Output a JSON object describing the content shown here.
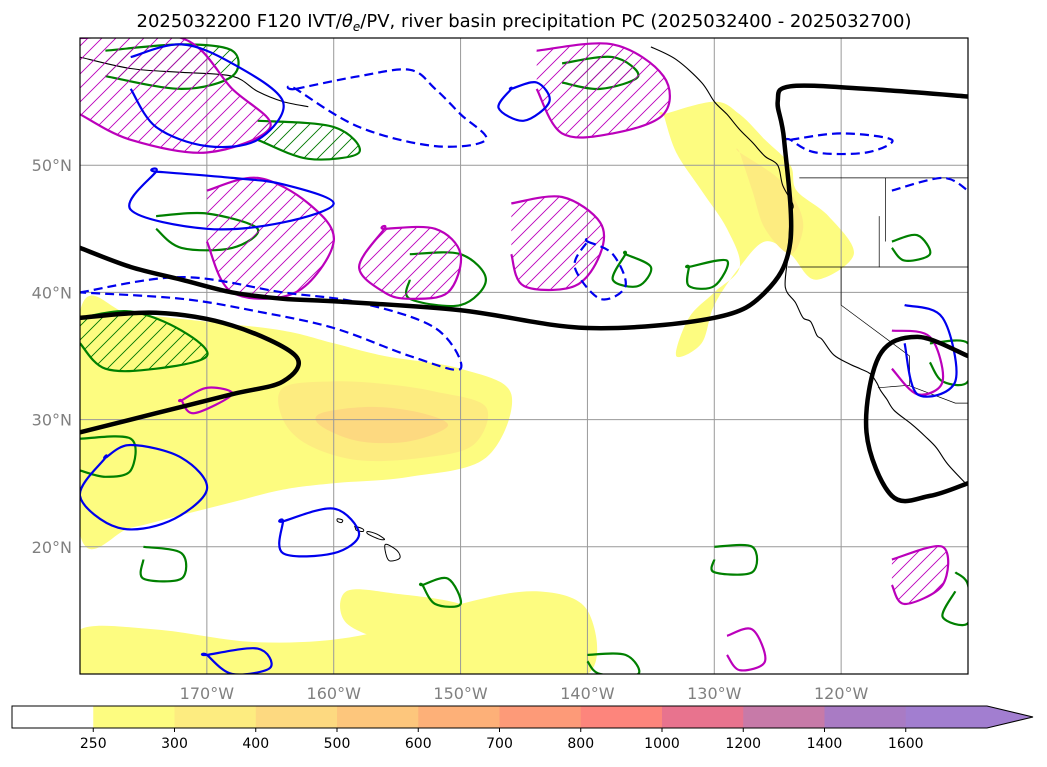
{
  "chart_data": {
    "type": "map",
    "title": "2025032200 F120 IVT/θe/PV, river basin precipitation PC (2025032400 - 2025032700)",
    "title_parts": {
      "lead": "2025032200 F120 IVT/",
      "theta": "θ",
      "theta_sub": "e",
      "trail": "/PV, river basin precipitation PC (2025032400 - 2025032700)"
    },
    "projection": "PlateCarree",
    "extent": {
      "lon_min": -180,
      "lon_max": -110,
      "lat_min": 10,
      "lat_max": 60
    },
    "lat_ticks": [
      {
        "value": 50,
        "label": "50°N"
      },
      {
        "value": 40,
        "label": "40°N"
      },
      {
        "value": 30,
        "label": "30°N"
      },
      {
        "value": 20,
        "label": "20°N"
      }
    ],
    "lon_ticks": [
      {
        "value": -170,
        "label": "170°W"
      },
      {
        "value": -160,
        "label": "160°W"
      },
      {
        "value": -150,
        "label": "150°W"
      },
      {
        "value": -140,
        "label": "140°W"
      },
      {
        "value": -130,
        "label": "130°W"
      },
      {
        "value": -120,
        "label": "120°W"
      }
    ],
    "grid": true,
    "colorbar": {
      "orientation": "horizontal",
      "extend": "max",
      "levels": [
        250,
        300,
        400,
        500,
        600,
        700,
        800,
        1000,
        1200,
        1400,
        1600
      ],
      "labels": [
        "250",
        "300",
        "400",
        "500",
        "600",
        "700",
        "800",
        "1000",
        "1200",
        "1400",
        "1600"
      ],
      "colors": [
        "#ffffff",
        "#fdfc80",
        "#fdec80",
        "#fdd980",
        "#fdc67c",
        "#fdb078",
        "#fd9a78",
        "#fd857c",
        "#e8738e",
        "#c77aa8",
        "#a97bc4",
        "#a27ed0"
      ]
    },
    "ivt_regions": [
      {
        "level": 250,
        "lon": [
          -180,
          -176,
          -170,
          -164,
          -160,
          -156,
          -150,
          -146,
          -148,
          -154,
          -160,
          -164,
          -168,
          -172,
          -176,
          -180
        ],
        "lat": [
          38.5,
          38.3,
          37.7,
          37,
          36,
          35,
          34,
          32,
          27,
          25.5,
          25,
          24.5,
          23.5,
          22.5,
          21.5,
          21
        ]
      },
      {
        "level": 300,
        "lon": [
          -164,
          -160,
          -156,
          -152,
          -148,
          -149,
          -153,
          -158,
          -162,
          -164
        ],
        "lat": [
          32.5,
          33,
          32.8,
          32.2,
          31,
          28,
          27,
          26.8,
          28,
          30
        ]
      },
      {
        "level": 400,
        "lon": [
          -161,
          -157,
          -153,
          -151,
          -154,
          -158,
          -161
        ],
        "lat": [
          30.5,
          31,
          30.5,
          29.5,
          28.3,
          28.3,
          29.5
        ]
      },
      {
        "level": 250,
        "lon": [
          -180,
          -174,
          -166,
          -158,
          -150,
          -144,
          -140,
          -140,
          -148,
          -158,
          -168,
          -176,
          -180
        ],
        "lat": [
          13.5,
          13.5,
          12.5,
          13,
          15.5,
          16.5,
          15,
          10,
          10,
          10,
          10,
          10,
          10
        ]
      },
      {
        "level": 250,
        "lon": [
          -159,
          -155,
          -150,
          -148,
          -150,
          -155,
          -159
        ],
        "lat": [
          16.5,
          16.3,
          15.5,
          14,
          12.5,
          12.5,
          14
        ]
      },
      {
        "level": 250,
        "lon": [
          -134,
          -130,
          -128,
          -126,
          -124,
          -123.5,
          -121,
          -119,
          -122,
          -124,
          -126,
          -128,
          -130,
          -131,
          -133,
          -132,
          -130,
          -128,
          -129,
          -131,
          -133,
          -134
        ],
        "lat": [
          54,
          55,
          54,
          52,
          50,
          48,
          46,
          43,
          41,
          43,
          44,
          42,
          39,
          36,
          35,
          38,
          40,
          42,
          45,
          48,
          51,
          54
        ]
      },
      {
        "level": 300,
        "lon": [
          -128,
          -125,
          -123.5,
          -123,
          -124,
          -126,
          -127,
          -128
        ],
        "lat": [
          51,
          49,
          47,
          45,
          43,
          45,
          48,
          51
        ]
      }
    ],
    "pv_contours": [
      {
        "lon": [
          -180,
          -176,
          -172,
          -168,
          -164,
          -160,
          -150,
          -140,
          -130,
          -126,
          -124,
          -124.5,
          -125,
          -124,
          -118,
          -110
        ],
        "lat": [
          43.5,
          42,
          41,
          40,
          39.5,
          39.3,
          38.6,
          37.2,
          38,
          40,
          44,
          52,
          55,
          56.2,
          56,
          55.4
        ]
      },
      {
        "lon": [
          -180,
          -174,
          -168,
          -163,
          -164,
          -168,
          -174,
          -180
        ],
        "lat": [
          38,
          38.4,
          37.4,
          35,
          33,
          32,
          30.5,
          29
        ]
      },
      {
        "lon": [
          -110,
          -114,
          -117,
          -118,
          -116,
          -113,
          -110
        ],
        "lat": [
          35,
          36.5,
          35,
          29,
          24,
          24,
          25
        ]
      }
    ],
    "theta_e_contours": [
      {
        "lon": [
          -176,
          -172,
          -168,
          -164,
          -166,
          -170,
          -174,
          -176
        ],
        "lat": [
          58.5,
          59.5,
          58,
          55,
          52,
          51.5,
          53,
          56
        ]
      },
      {
        "lon": [
          -174,
          -168,
          -164,
          -160,
          -164,
          -170,
          -176,
          -174
        ],
        "lat": [
          49.5,
          49,
          48.5,
          47,
          45.5,
          45,
          46.5,
          49.5
        ]
      },
      {
        "lon": [
          -146,
          -144,
          -143,
          -145,
          -147,
          -146
        ],
        "lat": [
          56,
          56.5,
          55,
          53.5,
          54.5,
          56
        ]
      },
      {
        "lon": [
          -178,
          -176,
          -172,
          -170,
          -173,
          -177,
          -180,
          -178
        ],
        "lat": [
          27,
          28,
          27,
          24.5,
          22,
          21.5,
          24,
          27
        ]
      },
      {
        "lon": [
          -164,
          -160,
          -158,
          -160,
          -164,
          -164
        ],
        "lat": [
          22,
          23,
          21,
          19.5,
          19.5,
          22
        ]
      },
      {
        "lon": [
          -170,
          -166,
          -165,
          -168,
          -170
        ],
        "lat": [
          11.5,
          12,
          10.5,
          10,
          11.5
        ]
      },
      {
        "lon": [
          -115,
          -112,
          -111,
          -114,
          -115
        ],
        "lat": [
          39,
          38,
          33,
          32,
          36
        ]
      }
    ],
    "theta_e_dashed": [
      {
        "lon": [
          -180,
          -172,
          -164,
          -158,
          -152,
          -150,
          -154,
          -160,
          -166,
          -172,
          -180
        ],
        "lat": [
          40,
          41.2,
          40,
          39.2,
          37.2,
          34,
          35,
          37.2,
          38.5,
          39.5,
          40
        ]
      },
      {
        "lon": [
          -163,
          -158,
          -154,
          -152,
          -150,
          -148,
          -152,
          -158,
          -163
        ],
        "lat": [
          56,
          57,
          57.5,
          56,
          54,
          52,
          51.5,
          53,
          56
        ]
      },
      {
        "lon": [
          -140,
          -138,
          -137,
          -139,
          -141,
          -140
        ],
        "lat": [
          44,
          43,
          40.5,
          39.5,
          42,
          44
        ]
      },
      {
        "lon": [
          -124,
          -120,
          -116,
          -118,
          -122,
          -124
        ],
        "lat": [
          52,
          52.5,
          52,
          51,
          51,
          52
        ]
      },
      {
        "lon": [
          -116,
          -112,
          -110
        ],
        "lat": [
          48,
          49,
          48
        ]
      }
    ],
    "precip_contours": [
      {
        "lon": [
          -180,
          -172,
          -168,
          -165,
          -170,
          -176,
          -180
        ],
        "lat": [
          60,
          60,
          56,
          53,
          51,
          52,
          54
        ],
        "hatched": true
      },
      {
        "lon": [
          -170,
          -166,
          -162,
          -160,
          -163,
          -168,
          -170
        ],
        "lat": [
          48,
          49,
          47,
          44,
          40,
          40,
          44
        ],
        "hatched": true
      },
      {
        "lon": [
          -144,
          -138,
          -134,
          -134,
          -138,
          -142,
          -144
        ],
        "lat": [
          59,
          59.5,
          57,
          54,
          52.5,
          52.5,
          56
        ],
        "hatched": true
      },
      {
        "lon": [
          -156,
          -152,
          -150,
          -151,
          -154,
          -156,
          -158,
          -156
        ],
        "lat": [
          45,
          45,
          43,
          40,
          39.5,
          40,
          42,
          45
        ],
        "hatched": true
      },
      {
        "lon": [
          -146,
          -142,
          -139,
          -139,
          -141,
          -145,
          -146
        ],
        "lat": [
          47,
          47.5,
          45.5,
          43,
          40.5,
          40.5,
          43
        ],
        "hatched": true
      },
      {
        "lon": [
          -172,
          -170,
          -168,
          -171,
          -172
        ],
        "lat": [
          31.5,
          32.5,
          32,
          30.5,
          31.5
        ],
        "hatched": false
      },
      {
        "lon": [
          -116,
          -113,
          -112,
          -114,
          -116
        ],
        "lat": [
          37,
          36.5,
          33,
          32,
          34
        ],
        "hatched": false
      },
      {
        "lon": [
          -116,
          -112,
          -112,
          -115,
          -116
        ],
        "lat": [
          19,
          20,
          17,
          15.5,
          17
        ],
        "hatched": true
      },
      {
        "lon": [
          -129,
          -127,
          -126,
          -128,
          -129
        ],
        "lat": [
          13,
          13.5,
          11,
          10.3,
          11.5
        ],
        "hatched": false
      }
    ],
    "precip_green": [
      {
        "lon": [
          -178,
          -172,
          -168,
          -168,
          -172,
          -178
        ],
        "lat": [
          59,
          59.5,
          59,
          57,
          56,
          57
        ],
        "hatched": true
      },
      {
        "lon": [
          -166,
          -160,
          -158,
          -162,
          -166
        ],
        "lat": [
          53.5,
          53,
          51,
          50.5,
          52
        ],
        "hatched": true
      },
      {
        "lon": [
          -142,
          -138,
          -136,
          -139,
          -142
        ],
        "lat": [
          58,
          58.5,
          57,
          56,
          56.5
        ],
        "hatched": true
      },
      {
        "lon": [
          -180,
          -176,
          -172,
          -170,
          -174,
          -178,
          -180
        ],
        "lat": [
          38,
          38.5,
          37,
          35,
          34,
          34,
          36
        ],
        "hatched": true
      },
      {
        "lon": [
          -174,
          -170,
          -166,
          -168,
          -172,
          -174
        ],
        "lat": [
          46,
          46.2,
          45,
          43.5,
          43.5,
          45
        ],
        "hatched": false
      },
      {
        "lon": [
          -154,
          -150,
          -148,
          -150,
          -154,
          -154
        ],
        "lat": [
          43,
          43,
          41,
          39,
          39.5,
          41
        ],
        "hatched": false
      },
      {
        "lon": [
          -132,
          -129,
          -130,
          -132,
          -132
        ],
        "lat": [
          42,
          42.5,
          40.5,
          40.5,
          42
        ],
        "hatched": false
      },
      {
        "lon": [
          -137,
          -135,
          -136,
          -138,
          -137
        ],
        "lat": [
          43,
          42,
          40.5,
          41,
          43
        ],
        "hatched": false
      },
      {
        "lon": [
          -180,
          -176,
          -176,
          -178,
          -180
        ],
        "lat": [
          28.5,
          28.5,
          26,
          25.5,
          26
        ],
        "hatched": false
      },
      {
        "lon": [
          -175,
          -172,
          -172,
          -175,
          -175
        ],
        "lat": [
          20,
          19.5,
          17.5,
          17.5,
          19
        ],
        "hatched": false
      },
      {
        "lon": [
          -153,
          -151,
          -150,
          -152,
          -153
        ],
        "lat": [
          17,
          17.5,
          15.5,
          15.5,
          17
        ],
        "hatched": false
      },
      {
        "lon": [
          -130,
          -127,
          -127,
          -130,
          -130
        ],
        "lat": [
          20,
          20,
          18,
          18,
          19
        ],
        "hatched": false
      },
      {
        "lon": [
          -140,
          -137,
          -136,
          -139,
          -140
        ],
        "lat": [
          11.5,
          11.5,
          10,
          10,
          11
        ],
        "hatched": false
      },
      {
        "lon": [
          -111,
          -110,
          -110,
          -112,
          -111
        ],
        "lat": [
          18,
          17,
          14,
          14.5,
          16.5
        ],
        "hatched": false
      },
      {
        "lon": [
          -116,
          -114,
          -113,
          -115,
          -116
        ],
        "lat": [
          44,
          44.5,
          43,
          42.5,
          43.5
        ],
        "hatched": false
      },
      {
        "lon": [
          -113,
          -110,
          -110,
          -112,
          -113
        ],
        "lat": [
          36,
          36,
          33,
          33,
          34.5
        ],
        "hatched": false
      }
    ],
    "coastlines": [
      {
        "lon": [
          -135,
          -133,
          -131,
          -130,
          -129,
          -128,
          -127,
          -126,
          -125,
          -124.6,
          -123.8,
          -124,
          -124.1,
          -124.2,
          -124.4,
          -123.6,
          -123,
          -122.4,
          -121.9,
          -121.5,
          -120.6,
          -119.4,
          -118.5,
          -117.7,
          -117.2,
          -116.9,
          -116.4,
          -115.8,
          -114.4,
          -113.4,
          -112.5,
          -111.6,
          -110.2
        ],
        "lat": [
          59.3,
          58.3,
          56.5,
          55,
          54,
          52.8,
          51.8,
          50.7,
          50,
          48.4,
          46.9,
          46.2,
          44.5,
          42.8,
          40.4,
          39.2,
          38,
          37.7,
          36.6,
          36.3,
          35.1,
          34.4,
          34,
          33.6,
          32.9,
          32.3,
          31.6,
          30.7,
          29.6,
          28.7,
          27.8,
          26.5,
          25
        ]
      },
      {
        "lon": [
          -180,
          -176,
          -172,
          -168,
          -166,
          -164,
          -162
        ],
        "lat": [
          58.5,
          57.6,
          57.3,
          57,
          55.8,
          55,
          54.6
        ]
      }
    ],
    "islands": [
      {
        "lon": [
          -155.9,
          -155.0,
          -154.8,
          -155.6,
          -155.9
        ],
        "lat": [
          20.2,
          19.7,
          19.1,
          18.9,
          19.5
        ]
      },
      {
        "lon": [
          -157.3,
          -156.6,
          -156.0,
          -156.4,
          -157.3
        ],
        "lat": [
          21.2,
          21.0,
          20.6,
          20.6,
          21.0
        ]
      },
      {
        "lon": [
          -158.3,
          -157.7,
          -157.7,
          -158.2,
          -158.3
        ],
        "lat": [
          21.6,
          21.4,
          21.2,
          21.3,
          21.5
        ]
      },
      {
        "lon": [
          -159.7,
          -159.3,
          -159.4,
          -159.7
        ],
        "lat": [
          22.2,
          22.1,
          21.9,
          22.0
        ]
      }
    ],
    "borders": [
      {
        "lon": [
          -123.3,
          -110
        ],
        "lat": [
          49,
          49
        ]
      },
      {
        "lon": [
          -124.2,
          -117,
          -117
        ],
        "lat": [
          42,
          42,
          46
        ]
      },
      {
        "lon": [
          -117,
          -110
        ],
        "lat": [
          42,
          42
        ]
      },
      {
        "lon": [
          -120,
          -120,
          -114.6,
          -114.6
        ],
        "lat": [
          42,
          39,
          35,
          32.7
        ]
      },
      {
        "lon": [
          -117.1,
          -114.7,
          -111,
          -110
        ],
        "lat": [
          32.5,
          32.7,
          31.3,
          31.3
        ]
      },
      {
        "lon": [
          -116.5,
          -116.5
        ],
        "lat": [
          49,
          44
        ]
      }
    ]
  }
}
